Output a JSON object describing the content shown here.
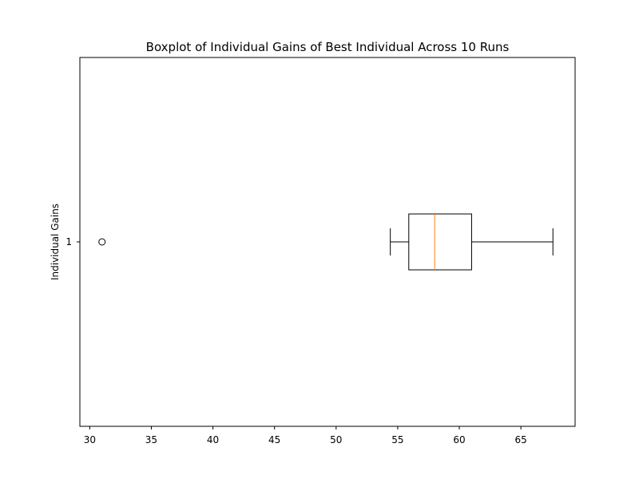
{
  "chart_data": {
    "type": "boxplot",
    "orientation": "horizontal",
    "title": "Boxplot of Individual Gains of Best Individual Across 10 Runs",
    "xlabel": "",
    "ylabel": "Individual Gains",
    "xlim": [
      29.2,
      69.4
    ],
    "x_ticks": [
      30,
      35,
      40,
      45,
      50,
      55,
      60,
      65
    ],
    "y_ticks": [
      "1"
    ],
    "grid": false,
    "boxes": [
      {
        "category": "1",
        "whisker_low": 54.4,
        "q1": 55.9,
        "median": 58.0,
        "q3": 61.0,
        "whisker_high": 67.6,
        "outliers": [
          31.0
        ]
      }
    ],
    "colors": {
      "box": "#000000",
      "median": "#ff7f0e",
      "outlier": "#000000"
    }
  }
}
